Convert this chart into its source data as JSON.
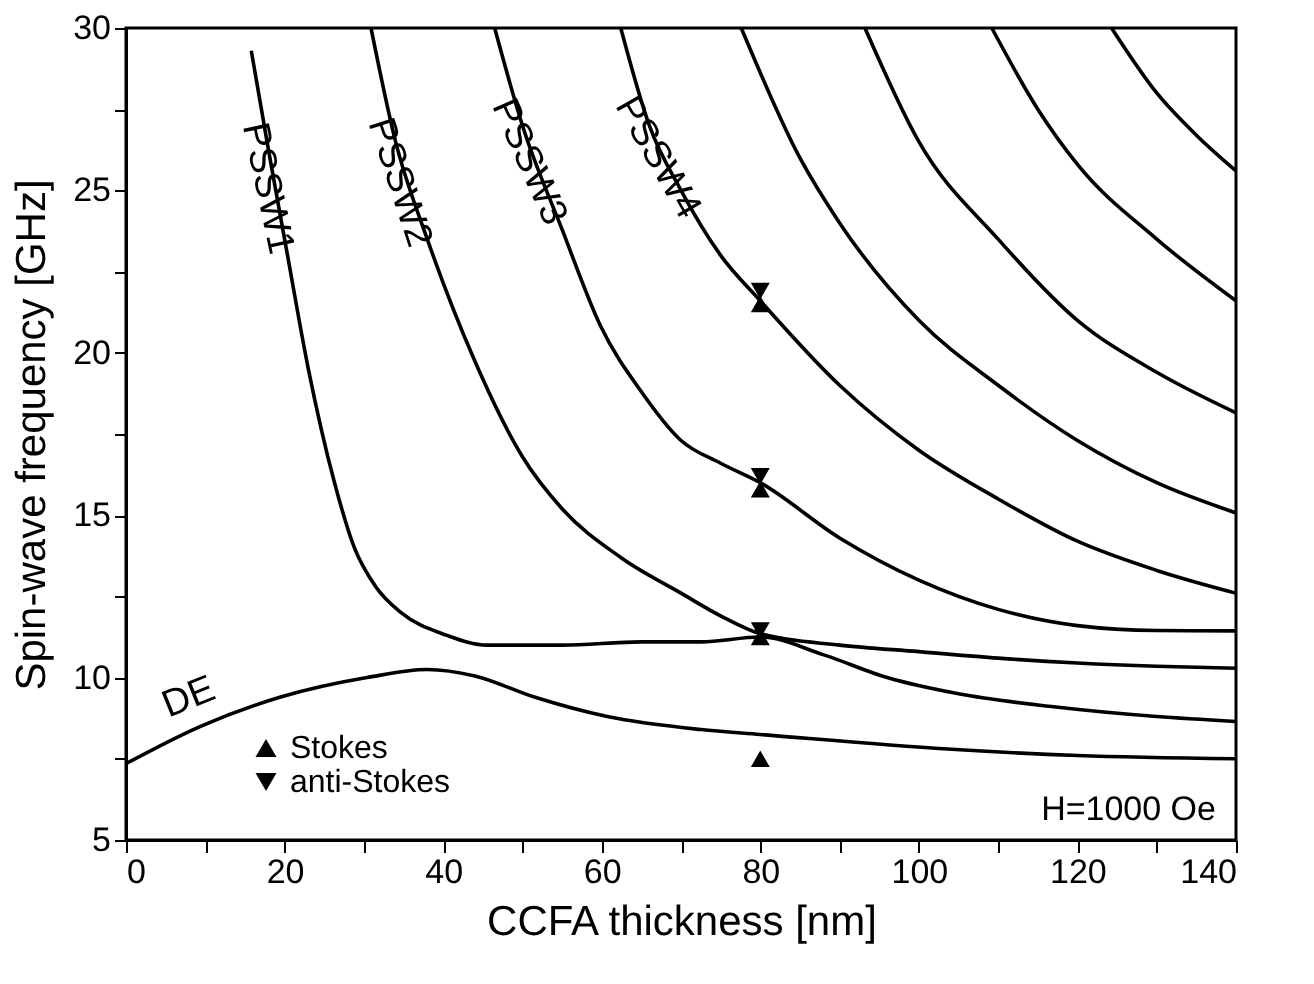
{
  "chart_data": {
    "type": "line",
    "xlabel": "CCFA thickness [nm]",
    "ylabel": "Spin-wave frequency [GHz]",
    "xlim": [
      0,
      140
    ],
    "ylim": [
      5,
      30
    ],
    "xticks": [
      0,
      {
        "value": 10,
        "label": null
      },
      20,
      {
        "value": 30,
        "label": null
      },
      40,
      {
        "value": 50,
        "label": null
      },
      60,
      {
        "value": 70,
        "label": null
      },
      80,
      {
        "value": 90,
        "label": null
      },
      100,
      {
        "value": 110,
        "label": null
      },
      120,
      {
        "value": 130,
        "label": null
      },
      140
    ],
    "yticks": [
      5,
      {
        "value": 7.5,
        "label": null
      },
      10,
      {
        "value": 12.5,
        "label": null
      },
      15,
      {
        "value": 17.5,
        "label": null
      },
      20,
      {
        "value": 22.5,
        "label": null
      },
      25,
      {
        "value": 27.5,
        "label": null
      },
      30
    ],
    "grid": false,
    "legend": "bottom left",
    "line_style": "solid",
    "annotations": [
      "H=1000 Oe"
    ],
    "series": [
      {
        "name": "DE",
        "color": "#000000",
        "x": [
          0,
          9.4,
          19.5,
          30.4,
          38,
          44,
          51.5,
          60.7,
          72.5,
          80,
          103.6,
          120,
          140
        ],
        "values": [
          7.35,
          8.5,
          9.4,
          10.0,
          10.25,
          10.05,
          9.4,
          8.8,
          8.4,
          8.25,
          7.8,
          7.6,
          7.5
        ]
      },
      {
        "name": "PSSW1",
        "color": "#000000",
        "x": [
          15.8,
          18,
          20.3,
          23,
          26.3,
          28.8,
          31.5,
          34.7,
          40.5,
          45.5,
          55,
          65,
          72.5,
          80,
          88,
          96,
          105,
          117,
          130,
          140
        ],
        "values": [
          29.3,
          26.2,
          23.1,
          19.5,
          16.0,
          14.0,
          12.8,
          12.0,
          11.3,
          11.0,
          11.0,
          11.1,
          11.1,
          11.25,
          10.7,
          10.0,
          9.5,
          9.1,
          8.8,
          8.65
        ]
      },
      {
        "name": "PSSW2",
        "color": "#000000",
        "x": [
          30.9,
          34,
          38,
          43.9,
          50,
          55,
          62.4,
          70,
          75,
          80,
          90,
          100,
          110,
          120,
          130,
          140
        ],
        "values": [
          30,
          26.5,
          23.5,
          19.8,
          16.8,
          15.2,
          13.7,
          12.6,
          11.9,
          11.35,
          11.0,
          10.8,
          10.6,
          10.45,
          10.35,
          10.29
        ]
      },
      {
        "name": "PSSW3",
        "color": "#000000",
        "x": [
          46.5,
          50,
          55,
          59.9,
          65,
          70,
          75,
          80,
          90,
          100,
          110,
          120,
          130,
          140
        ],
        "values": [
          30,
          27,
          23.8,
          20.8,
          18.8,
          17.3,
          16.6,
          16.0,
          14.3,
          13.0,
          12.1,
          11.6,
          11.45,
          11.44
        ]
      },
      {
        "name": "PSSW4",
        "color": "#000000",
        "x": [
          62.4,
          66,
          70,
          75,
          80,
          90,
          100,
          110,
          120,
          130,
          140
        ],
        "values": [
          30,
          27,
          25,
          23,
          21.6,
          19,
          17,
          15.5,
          14.2,
          13.3,
          12.6
        ]
      },
      {
        "color": "#000000",
        "x": [
          77.6,
          85,
          90,
          100,
          110,
          120,
          130,
          140
        ],
        "values": [
          30,
          26,
          24,
          21,
          19,
          17.3,
          16,
          15.07
        ]
      },
      {
        "color": "#000000",
        "x": [
          93.2,
          100,
          110,
          120,
          130,
          140
        ],
        "values": [
          30,
          26.5,
          23.5,
          21,
          19.4,
          18.15
        ]
      },
      {
        "color": "#000000",
        "x": [
          109.2,
          115,
          120,
          130,
          140
        ],
        "values": [
          30,
          27.5,
          25.8,
          23.5,
          21.6
        ]
      },
      {
        "color": "#000000",
        "x": [
          124.3,
          130,
          135,
          140
        ],
        "values": [
          30,
          28,
          26.7,
          25.6
        ]
      },
      {
        "name": "Stokes",
        "type": "scatter",
        "marker": "triangle",
        "color": "#000000",
        "x": [
          80,
          80,
          80,
          80
        ],
        "values": [
          7.5,
          11.25,
          15.8,
          21.5
        ]
      },
      {
        "name": "anti-Stokes",
        "type": "scatter",
        "marker": "triangle-down",
        "color": "#000000",
        "x": [
          80,
          80,
          80
        ],
        "values": [
          11.45,
          16.2,
          21.9
        ]
      }
    ]
  }
}
